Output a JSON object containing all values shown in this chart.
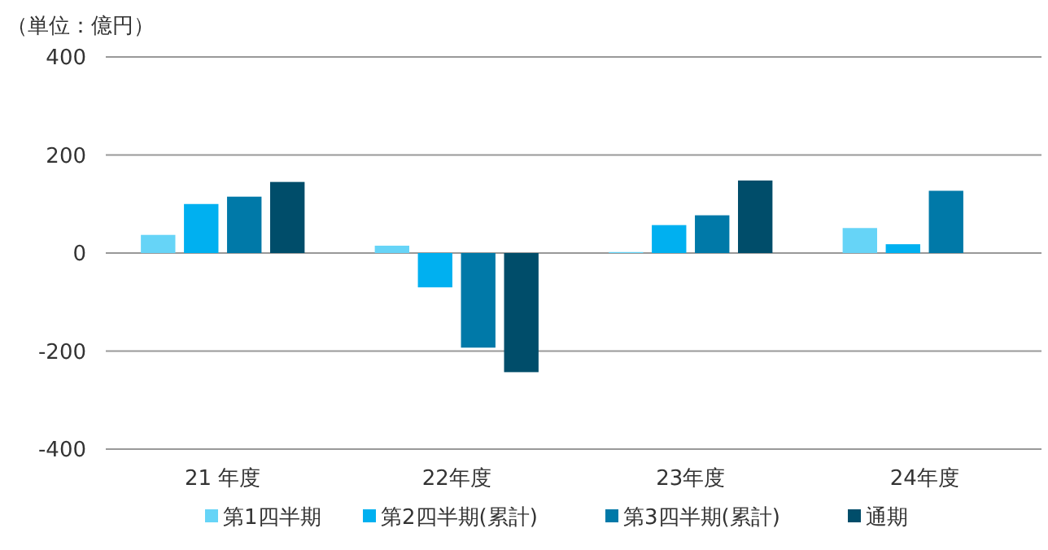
{
  "chart_data": {
    "type": "bar",
    "ylabel": "（単位：億円）",
    "categories": [
      "21 年度",
      "22年度",
      "23年度",
      "24年度"
    ],
    "series": [
      {
        "name": "第1四半期",
        "color": "#66d4f7",
        "values": [
          37,
          15,
          2,
          51
        ]
      },
      {
        "name": "第2四半期(累計)",
        "color": "#00b0f0",
        "values": [
          100,
          -70,
          57,
          18
        ]
      },
      {
        "name": "第3四半期(累計)",
        "color": "#0079a8",
        "values": [
          115,
          -193,
          77,
          127
        ]
      },
      {
        "name": "通期",
        "color": "#004d6a",
        "values": [
          145,
          -243,
          148,
          null
        ]
      }
    ],
    "ylim": [
      -400,
      400
    ],
    "yticks": [
      -400,
      -200,
      0,
      200,
      400
    ],
    "grid": "y",
    "legend": "bottom"
  }
}
